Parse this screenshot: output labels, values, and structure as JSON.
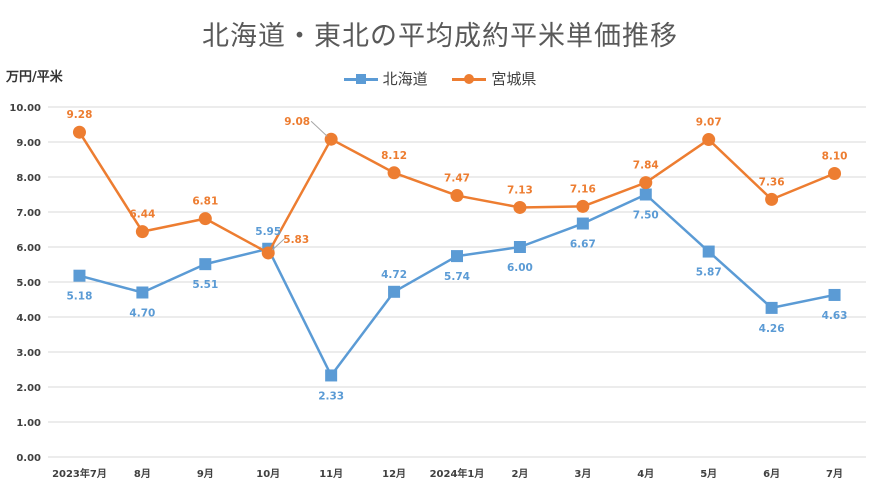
{
  "chart_data": {
    "type": "line",
    "title": "北海道・東北の平均成約平米単価推移",
    "ylabel": "万円/平米",
    "ylim": [
      0,
      10
    ],
    "yticks": [
      "0.00",
      "1.00",
      "2.00",
      "3.00",
      "4.00",
      "5.00",
      "6.00",
      "7.00",
      "8.00",
      "9.00",
      "10.00"
    ],
    "categories": [
      "2023年7月",
      "8月",
      "9月",
      "10月",
      "11月",
      "12月",
      "2024年1月",
      "2月",
      "3月",
      "4月",
      "5月",
      "6月",
      "7月"
    ],
    "legend_position": "top",
    "grid": true,
    "series": [
      {
        "name": "北海道",
        "color": "#5b9bd5",
        "marker": "square",
        "values": [
          5.18,
          4.7,
          5.51,
          5.95,
          2.33,
          4.72,
          5.74,
          6.0,
          6.67,
          7.5,
          5.87,
          4.26,
          4.63
        ],
        "labels": [
          "5.18",
          "4.70",
          "5.51",
          "5.95",
          "2.33",
          "4.72",
          "5.74",
          "6.00",
          "6.67",
          "7.50",
          "5.87",
          "4.26",
          "4.63"
        ]
      },
      {
        "name": "宮城県",
        "color": "#ed7d31",
        "marker": "circle",
        "values": [
          9.28,
          6.44,
          6.81,
          5.83,
          9.08,
          8.12,
          7.47,
          7.13,
          7.16,
          7.84,
          9.07,
          7.36,
          8.1
        ],
        "labels": [
          "9.28",
          "6.44",
          "6.81",
          "5.83",
          "9.08",
          "8.12",
          "7.47",
          "7.13",
          "7.16",
          "7.84",
          "9.07",
          "7.36",
          "8.10"
        ]
      }
    ]
  }
}
